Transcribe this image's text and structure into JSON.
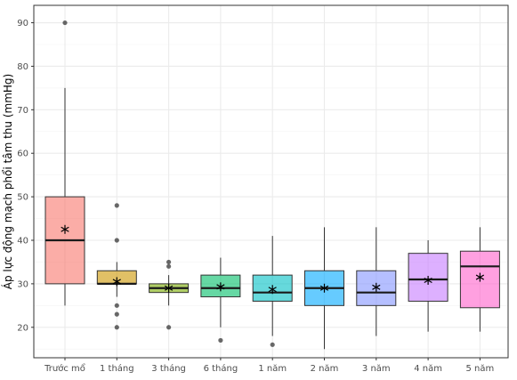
{
  "chart_data": {
    "type": "box",
    "title": "",
    "xlabel": "",
    "ylabel": "Áp lực động mạch phổi tâm thu (mmHg)",
    "ylim": [
      13,
      94
    ],
    "yticks": [
      20,
      30,
      40,
      50,
      60,
      70,
      80,
      90
    ],
    "grid": true,
    "legend": "none",
    "categories": [
      "Trước mổ",
      "1 tháng",
      "3 tháng",
      "6 tháng",
      "1 năm",
      "2 năm",
      "3 năm",
      "4 năm",
      "5 năm"
    ],
    "boxes": [
      {
        "category": "Trước mổ",
        "q1": 30,
        "median": 40,
        "q3": 50,
        "whisker_low": 25,
        "whisker_high": 75,
        "mean": 42.5,
        "outliers": [
          90
        ],
        "color": "#F8766D"
      },
      {
        "category": "1 tháng",
        "q1": 30,
        "median": 30,
        "q3": 33,
        "whisker_low": 27,
        "whisker_high": 35,
        "mean": 30.5,
        "outliers": [
          48,
          40,
          25,
          23,
          20
        ],
        "color": "#CD9600"
      },
      {
        "category": "3 tháng",
        "q1": 28,
        "median": 29,
        "q3": 30,
        "whisker_low": 25,
        "whisker_high": 32,
        "mean": 29,
        "outliers": [
          35,
          34,
          20
        ],
        "color": "#7CAE00"
      },
      {
        "category": "6 tháng",
        "q1": 27,
        "median": 29,
        "q3": 32,
        "whisker_low": 20,
        "whisker_high": 36,
        "mean": 29.3,
        "outliers": [
          17
        ],
        "color": "#00BE67"
      },
      {
        "category": "1 năm",
        "q1": 26,
        "median": 28,
        "q3": 32,
        "whisker_low": 18,
        "whisker_high": 41,
        "mean": 28.7,
        "outliers": [
          16
        ],
        "color": "#00BFC4"
      },
      {
        "category": "2 năm",
        "q1": 25,
        "median": 29,
        "q3": 33,
        "whisker_low": 15,
        "whisker_high": 43,
        "mean": 29,
        "outliers": [],
        "color": "#00A9FF"
      },
      {
        "category": "3 năm",
        "q1": 25,
        "median": 28,
        "q3": 33,
        "whisker_low": 18,
        "whisker_high": 43,
        "mean": 29.2,
        "outliers": [],
        "color": "#8494FF"
      },
      {
        "category": "4 năm",
        "q1": 26,
        "median": 31,
        "q3": 37,
        "whisker_low": 19,
        "whisker_high": 40,
        "mean": 30.8,
        "outliers": [],
        "color": "#C77CFF"
      },
      {
        "category": "5 năm",
        "q1": 24.5,
        "median": 34,
        "q3": 37.5,
        "whisker_low": 19,
        "whisker_high": 43,
        "mean": 31.5,
        "outliers": [],
        "color": "#FF61CC"
      }
    ]
  }
}
